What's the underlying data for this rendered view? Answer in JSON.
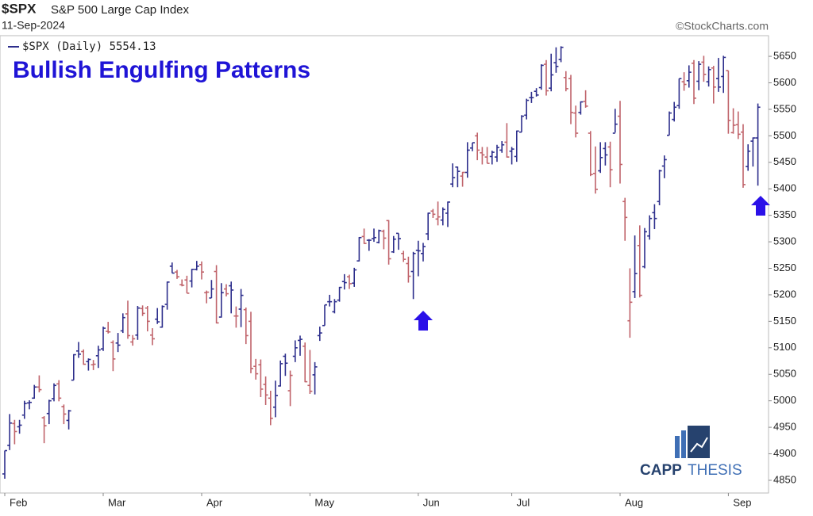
{
  "chart_data": {
    "type": "ohlc",
    "symbol": "$SPX",
    "subtitle": "S&P 500 Large Cap Index",
    "date": "11-Sep-2024",
    "legend_label": "$SPX (Daily) 5554.13",
    "title": "Bullish Engulfing Patterns",
    "source": "©StockCharts.com",
    "logo": [
      "CAPP",
      "THESIS"
    ],
    "up_color": "#2d2e8c",
    "down_color": "#c0636a",
    "title_color": "#1f14d6",
    "ylim": [
      4826,
      5689
    ],
    "yticks": [
      4850,
      4900,
      4950,
      5000,
      5050,
      5100,
      5150,
      5200,
      5250,
      5300,
      5350,
      5400,
      5450,
      5500,
      5550,
      5600,
      5650
    ],
    "categories": [
      "Feb",
      null,
      null,
      null,
      null,
      null,
      null,
      null,
      null,
      null,
      null,
      null,
      null,
      null,
      null,
      null,
      null,
      null,
      null,
      null,
      "Mar",
      null,
      null,
      null,
      null,
      null,
      null,
      null,
      null,
      null,
      null,
      null,
      null,
      null,
      null,
      null,
      null,
      null,
      null,
      null,
      "Apr",
      null,
      null,
      null,
      null,
      null,
      null,
      null,
      null,
      null,
      null,
      null,
      null,
      null,
      null,
      null,
      null,
      null,
      null,
      null,
      null,
      null,
      "May",
      null,
      null,
      null,
      null,
      null,
      null,
      null,
      null,
      null,
      null,
      null,
      null,
      null,
      null,
      null,
      null,
      null,
      null,
      null,
      null,
      null,
      "Jun",
      null,
      null,
      null,
      null,
      null,
      null,
      null,
      null,
      null,
      null,
      null,
      null,
      null,
      null,
      null,
      null,
      null,
      null,
      "Jul",
      null,
      null,
      null,
      null,
      null,
      null,
      null,
      null,
      null,
      null,
      null,
      null,
      null,
      null,
      null,
      null,
      null,
      null,
      null,
      null,
      null,
      "Aug",
      null,
      null,
      null,
      null,
      null,
      null,
      null,
      null,
      null,
      null,
      null,
      null,
      null,
      null,
      null,
      null,
      null,
      null,
      null,
      null,
      null,
      "Sep",
      null,
      null,
      null,
      null,
      null,
      null
    ],
    "open": [
      4862,
      4916,
      4957,
      4951,
      4973,
      4996,
      5005,
      5026,
      4968,
      4976,
      5004,
      5032,
      4989,
      4963,
      5039,
      5094,
      5093,
      5074,
      5068,
      5085,
      5098,
      5131,
      5110,
      5109,
      5132,
      5164,
      5111,
      5124,
      5174,
      5175,
      5124,
      5154,
      5139,
      5182,
      5254,
      5243,
      5219,
      5228,
      5226,
      5248,
      5257,
      5204,
      5194,
      5244,
      5158,
      5211,
      5217,
      5160,
      5173,
      5172,
      5150,
      5065,
      5068,
      5031,
      5005,
      4988,
      5028,
      5084,
      5019,
      5084,
      5114,
      5103,
      5029,
      5049,
      5123,
      5142,
      5187,
      5168,
      5190,
      5225,
      5234,
      5222,
      5264,
      5310,
      5303,
      5306,
      5299,
      5320,
      5340,
      5281,
      5316,
      5278,
      5259,
      5244,
      5284,
      5278,
      5315,
      5358,
      5343,
      5341,
      5354,
      5409,
      5441,
      5424,
      5431,
      5477,
      5500,
      5468,
      5460,
      5461,
      5460,
      5473,
      5488,
      5471,
      5461,
      5507,
      5539,
      5572,
      5584,
      5591,
      5635,
      5590,
      5638,
      5644,
      5610,
      5608,
      5543,
      5544,
      5565,
      5505,
      5429,
      5434,
      5476,
      5479,
      5505,
      5537,
      5376,
      5151,
      5206,
      5293,
      5253,
      5311,
      5355,
      5376,
      5443,
      5501,
      5531,
      5557,
      5602,
      5604,
      5637,
      5603,
      5639,
      5602,
      5628,
      5608,
      5612,
      5623,
      5506,
      5521,
      5507,
      5442,
      5490,
      5496
    ],
    "high": [
      4906,
      4975,
      4964,
      4964,
      5000,
      5001,
      5030,
      5048,
      4971,
      5002,
      5033,
      5039,
      4993,
      4983,
      5088,
      5111,
      5097,
      5080,
      5077,
      5104,
      5140,
      5149,
      5114,
      5128,
      5165,
      5189,
      5124,
      5179,
      5180,
      5179,
      5137,
      5175,
      5180,
      5225,
      5261,
      5247,
      5229,
      5236,
      5249,
      5264,
      5263,
      5208,
      5228,
      5256,
      5222,
      5220,
      5225,
      5178,
      5211,
      5176,
      5168,
      5079,
      5078,
      5046,
      5019,
      5038,
      5076,
      5089,
      5057,
      5114,
      5123,
      5110,
      5096,
      5073,
      5140,
      5181,
      5200,
      5192,
      5215,
      5239,
      5238,
      5251,
      5309,
      5325,
      5305,
      5325,
      5323,
      5323,
      5341,
      5311,
      5316,
      5283,
      5272,
      5281,
      5302,
      5298,
      5355,
      5362,
      5376,
      5365,
      5376,
      5448,
      5442,
      5432,
      5488,
      5487,
      5506,
      5479,
      5479,
      5472,
      5483,
      5490,
      5524,
      5479,
      5510,
      5539,
      5570,
      5583,
      5590,
      5635,
      5643,
      5655,
      5667,
      5669,
      5622,
      5615,
      5557,
      5565,
      5586,
      5509,
      5480,
      5488,
      5488,
      5489,
      5551,
      5566,
      5383,
      5250,
      5312,
      5331,
      5326,
      5350,
      5371,
      5436,
      5463,
      5546,
      5564,
      5608,
      5620,
      5633,
      5643,
      5641,
      5651,
      5631,
      5632,
      5647,
      5651,
      5623,
      5552,
      5546,
      5522,
      5484,
      5497,
      5561
    ],
    "low": [
      4853,
      4907,
      4918,
      4938,
      4966,
      4984,
      5004,
      5016,
      4920,
      4956,
      4999,
      4999,
      4956,
      4946,
      5039,
      5081,
      5068,
      5057,
      5058,
      5062,
      5094,
      5127,
      5056,
      5092,
      5128,
      5117,
      5104,
      5115,
      5160,
      5131,
      5105,
      5145,
      5138,
      5172,
      5241,
      5230,
      5216,
      5203,
      5214,
      5246,
      5229,
      5184,
      5194,
      5146,
      5157,
      5197,
      5165,
      5138,
      5139,
      5107,
      5052,
      5040,
      5007,
      4992,
      4954,
      4969,
      5027,
      5047,
      4990,
      5073,
      5085,
      5035,
      5013,
      5012,
      5113,
      5142,
      5178,
      5165,
      5187,
      5210,
      5211,
      5215,
      5263,
      5296,
      5283,
      5300,
      5297,
      5286,
      5257,
      5279,
      5285,
      5262,
      5223,
      5192,
      5235,
      5263,
      5303,
      5345,
      5331,
      5331,
      5328,
      5403,
      5403,
      5404,
      5421,
      5471,
      5454,
      5446,
      5448,
      5446,
      5451,
      5468,
      5459,
      5446,
      5451,
      5507,
      5531,
      5562,
      5574,
      5587,
      5576,
      5584,
      5619,
      5639,
      5584,
      5522,
      5497,
      5540,
      5553,
      5424,
      5391,
      5430,
      5444,
      5403,
      5506,
      5410,
      5302,
      5119,
      5194,
      5195,
      5250,
      5304,
      5324,
      5369,
      5420,
      5501,
      5527,
      5551,
      5585,
      5591,
      5560,
      5586,
      5602,
      5593,
      5561,
      5583,
      5581,
      5504,
      5504,
      5494,
      5402,
      5434,
      5442,
      5406
    ],
    "close": [
      4906,
      4958,
      4942,
      4954,
      4995,
      4997,
      5026,
      5021,
      4953,
      5000,
      5029,
      5005,
      4975,
      4981,
      5087,
      5088,
      5069,
      5078,
      5069,
      5096,
      5137,
      5130,
      5079,
      5105,
      5157,
      5123,
      5117,
      5175,
      5165,
      5150,
      5117,
      5149,
      5178,
      5224,
      5241,
      5234,
      5218,
      5203,
      5248,
      5254,
      5243,
      5205,
      5211,
      5147,
      5204,
      5202,
      5209,
      5160,
      5199,
      5123,
      5061,
      5051,
      5022,
      5011,
      4967,
      5010,
      5070,
      5071,
      5048,
      5100,
      5116,
      5036,
      5018,
      5064,
      5128,
      5181,
      5187,
      5187,
      5214,
      5223,
      5221,
      5247,
      5308,
      5297,
      5303,
      5308,
      5321,
      5307,
      5268,
      5305,
      5306,
      5267,
      5235,
      5278,
      5283,
      5291,
      5354,
      5352,
      5347,
      5361,
      5375,
      5421,
      5433,
      5431,
      5473,
      5487,
      5473,
      5464,
      5448,
      5469,
      5478,
      5483,
      5460,
      5475,
      5509,
      5537,
      5567,
      5572,
      5577,
      5633,
      5585,
      5615,
      5631,
      5667,
      5589,
      5544,
      5505,
      5564,
      5556,
      5427,
      5399,
      5459,
      5464,
      5436,
      5522,
      5446,
      5346,
      5186,
      5240,
      5199,
      5319,
      5344,
      5344,
      5434,
      5455,
      5543,
      5554,
      5608,
      5597,
      5620,
      5571,
      5635,
      5616,
      5625,
      5592,
      5592,
      5648,
      5529,
      5520,
      5503,
      5408,
      5471,
      5496,
      5554
    ]
  }
}
